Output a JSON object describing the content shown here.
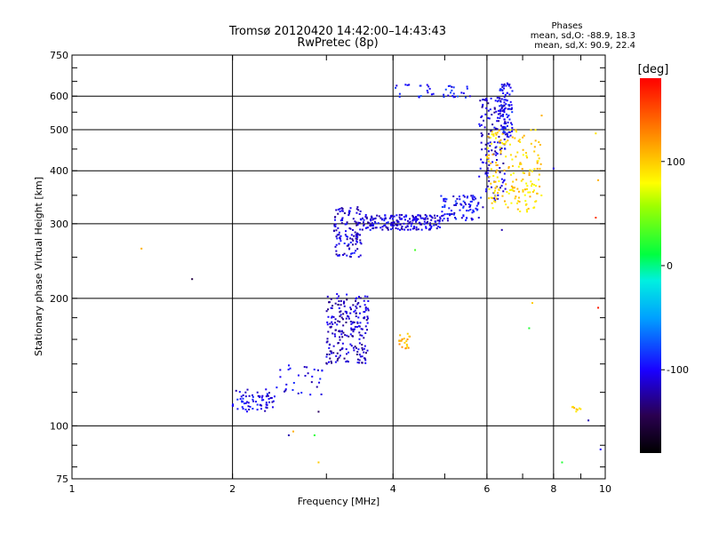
{
  "chart_data": {
    "type": "scatter",
    "title": "Tromsø 20120420 14:42:00–14:43:43",
    "subtitle": "RwPretec (8p)",
    "xlabel": "Frequency [MHz]",
    "ylabel": "Stationary phase Virtual Height [km]",
    "x_scale": "log",
    "y_scale": "log",
    "xlim": [
      1,
      10
    ],
    "ylim": [
      75,
      750
    ],
    "x_ticks": [
      "1",
      "2",
      "4",
      "6",
      "8",
      "10"
    ],
    "x_tick_values": [
      1,
      2,
      4,
      6,
      8,
      10
    ],
    "y_ticks": [
      "75",
      "100",
      "200",
      "300",
      "400",
      "500",
      "600",
      "750"
    ],
    "y_tick_values": [
      75,
      100,
      200,
      300,
      400,
      500,
      600,
      750
    ],
    "grid": true,
    "colorbar": {
      "label": "[deg]",
      "range": [
        -180,
        180
      ],
      "ticks": [
        "100",
        "0",
        "-100"
      ],
      "tick_values": [
        100,
        0,
        -100
      ]
    },
    "stats": {
      "heading": "Phases",
      "line_o": "mean, sd,O: -88.9, 18.3",
      "line_x": "mean, sd,X: 90.9, 22.4"
    },
    "clusters": [
      {
        "x_range": [
          2.0,
          2.4
        ],
        "y_range": [
          108,
          122
        ],
        "phase": -105,
        "count": 70
      },
      {
        "x_range": [
          2.4,
          2.95
        ],
        "y_range": [
          118,
          140
        ],
        "phase": -105,
        "count": 30
      },
      {
        "x_range": [
          3.0,
          3.6
        ],
        "y_range": [
          140,
          205
        ],
        "phase": -115,
        "count": 220
      },
      {
        "x_range": [
          3.1,
          3.5
        ],
        "y_range": [
          250,
          330
        ],
        "phase": -110,
        "count": 120
      },
      {
        "x_range": [
          3.5,
          4.9
        ],
        "y_range": [
          290,
          315
        ],
        "phase": -108,
        "count": 200
      },
      {
        "x_range": [
          4.9,
          5.9
        ],
        "y_range": [
          305,
          350
        ],
        "phase": -100,
        "count": 90
      },
      {
        "x_range": [
          4.0,
          5.6
        ],
        "y_range": [
          595,
          640
        ],
        "phase": -95,
        "count": 40
      },
      {
        "x_range": [
          5.8,
          6.5
        ],
        "y_range": [
          340,
          600
        ],
        "phase": -110,
        "count": 140
      },
      {
        "x_range": [
          6.3,
          6.7
        ],
        "y_range": [
          480,
          645
        ],
        "phase": -100,
        "count": 90
      },
      {
        "x_range": [
          6.0,
          7.6
        ],
        "y_range": [
          320,
          500
        ],
        "phase": 95,
        "count": 180
      },
      {
        "x_range": [
          4.1,
          4.3
        ],
        "y_range": [
          152,
          165
        ],
        "phase": 110,
        "count": 20
      },
      {
        "x_range": [
          8.6,
          9.0
        ],
        "y_range": [
          108,
          111
        ],
        "phase": 95,
        "count": 8
      }
    ],
    "isolated_points": [
      {
        "x": 1.35,
        "y": 262,
        "phase": 110
      },
      {
        "x": 1.68,
        "y": 222,
        "phase": -150
      },
      {
        "x": 2.55,
        "y": 95,
        "phase": -120
      },
      {
        "x": 2.6,
        "y": 97,
        "phase": 110
      },
      {
        "x": 2.85,
        "y": 95,
        "phase": 20
      },
      {
        "x": 2.9,
        "y": 82,
        "phase": 100
      },
      {
        "x": 2.9,
        "y": 108,
        "phase": -140
      },
      {
        "x": 4.4,
        "y": 260,
        "phase": 30
      },
      {
        "x": 6.4,
        "y": 290,
        "phase": -120
      },
      {
        "x": 7.3,
        "y": 195,
        "phase": 100
      },
      {
        "x": 7.2,
        "y": 170,
        "phase": 20
      },
      {
        "x": 7.6,
        "y": 540,
        "phase": 110
      },
      {
        "x": 8.0,
        "y": 405,
        "phase": -110
      },
      {
        "x": 8.3,
        "y": 82,
        "phase": 20
      },
      {
        "x": 9.6,
        "y": 310,
        "phase": 160
      },
      {
        "x": 9.6,
        "y": 490,
        "phase": 90
      },
      {
        "x": 9.7,
        "y": 380,
        "phase": 110
      },
      {
        "x": 9.7,
        "y": 190,
        "phase": 170
      },
      {
        "x": 9.3,
        "y": 103,
        "phase": -120
      },
      {
        "x": 9.8,
        "y": 88,
        "phase": -100
      }
    ]
  }
}
